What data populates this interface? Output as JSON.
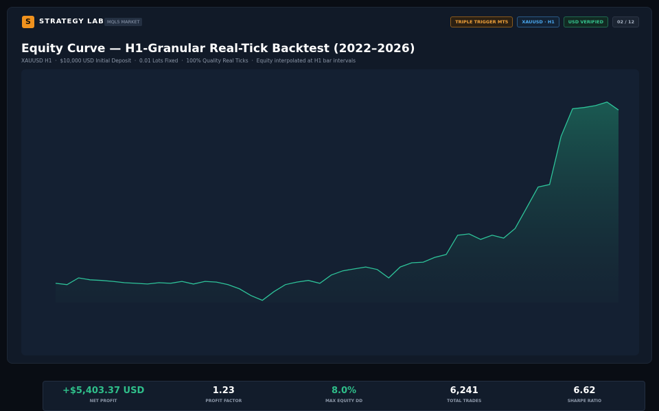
{
  "header": {
    "logo": "S",
    "brand": "STRATEGY LAB.",
    "tag": "MQL5 MARKET",
    "badges": [
      "TRIPLE TRIGGER MT5",
      "XAUUSD · H1",
      "USD VERIFIED",
      "02 / 12"
    ]
  },
  "title": "Equity Curve — H1-Granular Real-Tick Backtest (2022–2026)",
  "subtitle": "XAUUSD H1  ·  $10,000 USD Initial Deposit  ·  0.01 Lots Fixed  ·  100% Quality Real Ticks  ·  Equity interpolated at H1 bar intervals",
  "chart_data": {
    "type": "area",
    "color": "#2ec49a",
    "values": [
      10000,
      9960,
      10170,
      10110,
      10090,
      10060,
      10020,
      10000,
      9980,
      10020,
      10000,
      10060,
      9980,
      10060,
      10040,
      9960,
      9830,
      9620,
      9470,
      9740,
      9960,
      10040,
      10090,
      10000,
      10260,
      10390,
      10450,
      10510,
      10430,
      10170,
      10510,
      10640,
      10660,
      10810,
      10900,
      11500,
      11540,
      11370,
      11500,
      11410,
      11710,
      12350,
      13000,
      13080,
      14580,
      15440,
      15480,
      15540,
      15650,
      15403.37
    ],
    "ylim": [
      9400,
      16200
    ]
  },
  "stats": [
    {
      "value": "+$5,403.37 USD",
      "label": "NET PROFIT"
    },
    {
      "value": "1.23",
      "label": "PROFIT FACTOR"
    },
    {
      "value": "8.0%",
      "label": "MAX EQUITY DD"
    },
    {
      "value": "6,241",
      "label": "TOTAL TRADES"
    },
    {
      "value": "6.62",
      "label": "SHARPE RATIO"
    }
  ]
}
